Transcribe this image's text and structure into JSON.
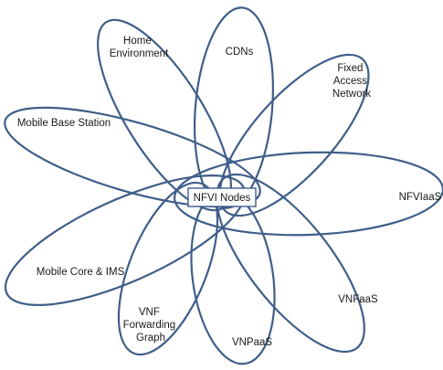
{
  "center_label": "NFVI Nodes",
  "petals": [
    {
      "id": "home-environment",
      "lines": [
        "Home",
        "Environment"
      ]
    },
    {
      "id": "cdns",
      "lines": [
        "CDNs"
      ]
    },
    {
      "id": "fixed-access-network",
      "lines": [
        "Fixed",
        "Access",
        "Network"
      ]
    },
    {
      "id": "mobile-base-station",
      "lines": [
        "Mobile Base Station"
      ]
    },
    {
      "id": "nfviaas",
      "lines": [
        "NFVIaaS"
      ]
    },
    {
      "id": "mobile-core-ims",
      "lines": [
        "Mobile Core & IMS"
      ]
    },
    {
      "id": "vnf-forwarding-graph",
      "lines": [
        "VNF",
        "Forwarding",
        "Graph"
      ]
    },
    {
      "id": "vnpaas",
      "lines": [
        "VNPaaS"
      ]
    },
    {
      "id": "vnfaas",
      "lines": [
        "VNFaaS"
      ]
    }
  ],
  "colors": {
    "stroke": "#3f5e89",
    "text": "#1a1a1a",
    "background": "#ffffff"
  }
}
